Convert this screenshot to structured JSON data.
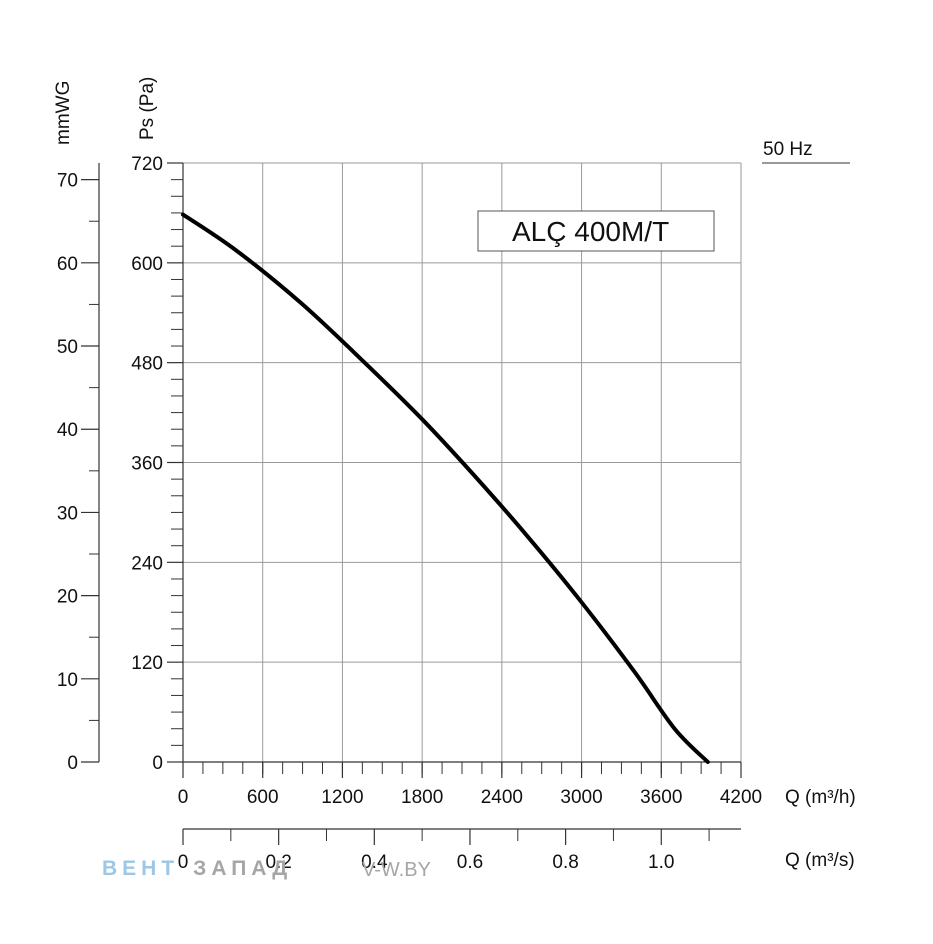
{
  "chart_data": {
    "type": "line",
    "title": "ALÇ 400M/T",
    "frequency_label": "50 Hz",
    "xlabel": "Q (m³/h)",
    "x2label": "Q (m³/s)",
    "ylabel": "Ps (Pa)",
    "y2label": "mmWG",
    "xlim": [
      0,
      4200
    ],
    "ylim": [
      0,
      720
    ],
    "x2lim": [
      0,
      1.1667
    ],
    "y2lim": [
      0,
      72
    ],
    "x_ticks": [
      0,
      600,
      1200,
      1800,
      2400,
      3000,
      3600,
      4200
    ],
    "x_tick_labels": [
      "0",
      "600",
      "1200",
      "1800",
      "2400",
      "3000",
      "3600",
      "4200"
    ],
    "y_ticks": [
      0,
      120,
      240,
      360,
      480,
      600,
      720
    ],
    "y_tick_labels": [
      "0",
      "120",
      "240",
      "360",
      "480",
      "600",
      "720"
    ],
    "x2_ticks": [
      0,
      0.2,
      0.4,
      0.6,
      0.8,
      1.0
    ],
    "x2_tick_labels": [
      "0",
      "0.2",
      "0.4",
      "0.6",
      "0.8",
      "1.0"
    ],
    "y2_ticks": [
      0,
      10,
      20,
      30,
      40,
      50,
      60,
      70
    ],
    "y2_tick_labels": [
      "0",
      "10",
      "20",
      "30",
      "40",
      "50",
      "60",
      "70"
    ],
    "grid": true,
    "series": [
      {
        "x": [
          0,
          400,
          900,
          1400,
          1800,
          2200,
          2600,
          3000,
          3400,
          3700,
          3950
        ],
        "y": [
          658,
          615,
          550,
          475,
          412,
          343,
          270,
          192,
          108,
          40,
          0
        ]
      }
    ],
    "colors": {
      "line": "#000000",
      "grid": "#9a9a9a",
      "axis": "#333333"
    }
  },
  "watermark": {
    "part1": "ВЕНТ",
    "part2": "ЗАПАД",
    "suffix": "V-W.BY",
    "color1": "#9cc7e6",
    "color2": "#a6a6a6"
  }
}
